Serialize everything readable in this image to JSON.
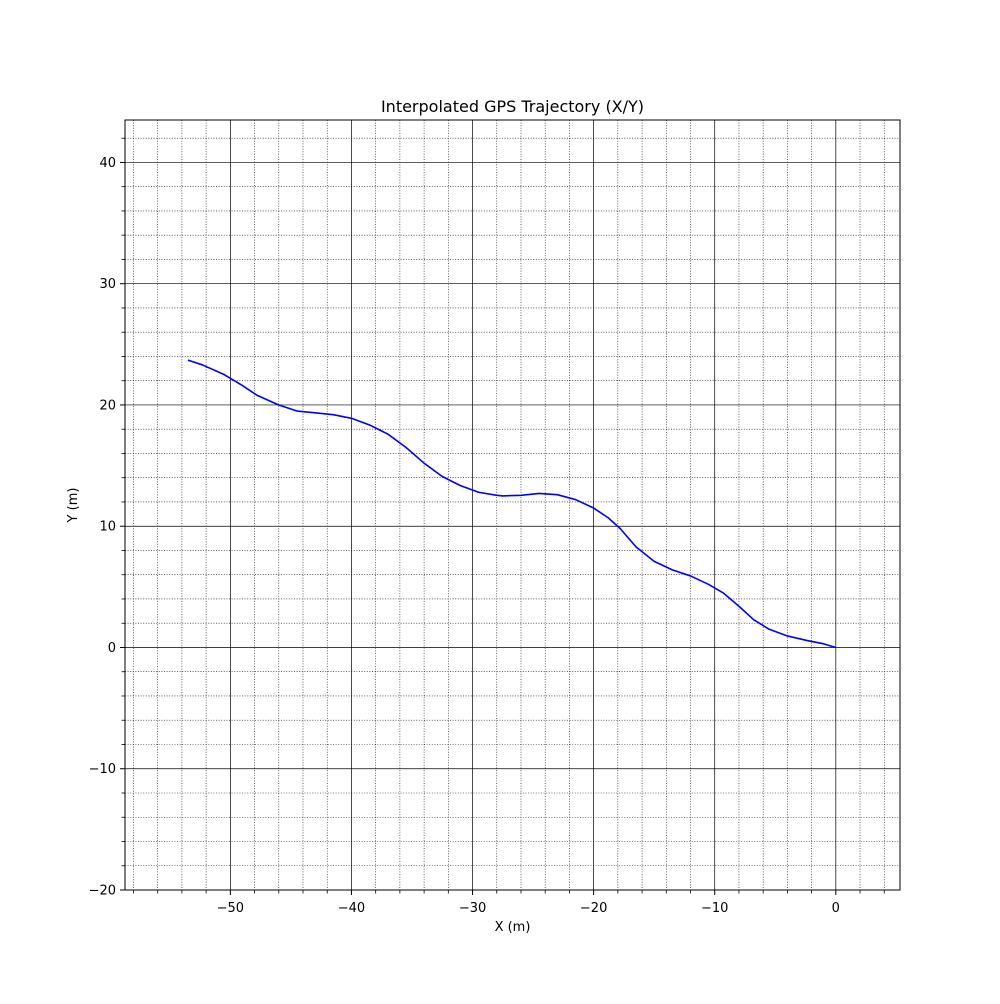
{
  "chart_data": {
    "type": "line",
    "title": "Interpolated GPS Trajectory (X/Y)",
    "xlabel": "X (m)",
    "ylabel": "Y (m)",
    "xlim": [
      -58.7,
      5.3
    ],
    "ylim": [
      -20,
      43.5
    ],
    "x_ticks": [
      -50,
      -40,
      -30,
      -20,
      -10,
      0
    ],
    "y_ticks": [
      -20,
      -10,
      0,
      10,
      20,
      30,
      40
    ],
    "x_tick_labels": [
      "−50",
      "−40",
      "−30",
      "−20",
      "−10",
      "0"
    ],
    "y_tick_labels": [
      "−20",
      "−10",
      "0",
      "10",
      "20",
      "30",
      "40"
    ],
    "x_minor_step": 2,
    "y_minor_step": 2,
    "grid": true,
    "legend": "none",
    "series": [
      {
        "color": "#0000ff",
        "x": [
          -53.5,
          -52.3,
          -50.5,
          -49.0,
          -47.8,
          -46.0,
          -44.5,
          -43.0,
          -41.5,
          -40.0,
          -38.5,
          -37.0,
          -35.5,
          -34.0,
          -32.5,
          -31.0,
          -29.5,
          -28.0,
          -27.5,
          -26.0,
          -24.5,
          -23.0,
          -21.5,
          -20.0,
          -18.8,
          -17.8,
          -16.5,
          -15.0,
          -13.5,
          -12.0,
          -10.5,
          -9.3,
          -8.0,
          -6.8,
          -5.5,
          -4.0,
          -2.5,
          -1.0,
          0.0
        ],
        "y": [
          23.7,
          23.3,
          22.5,
          21.6,
          20.8,
          20.0,
          19.5,
          19.35,
          19.2,
          18.9,
          18.35,
          17.6,
          16.5,
          15.2,
          14.1,
          13.35,
          12.8,
          12.55,
          12.5,
          12.55,
          12.7,
          12.6,
          12.2,
          11.5,
          10.7,
          9.8,
          8.3,
          7.1,
          6.4,
          5.9,
          5.2,
          4.5,
          3.4,
          2.3,
          1.5,
          0.95,
          0.6,
          0.3,
          0.0
        ]
      }
    ]
  }
}
